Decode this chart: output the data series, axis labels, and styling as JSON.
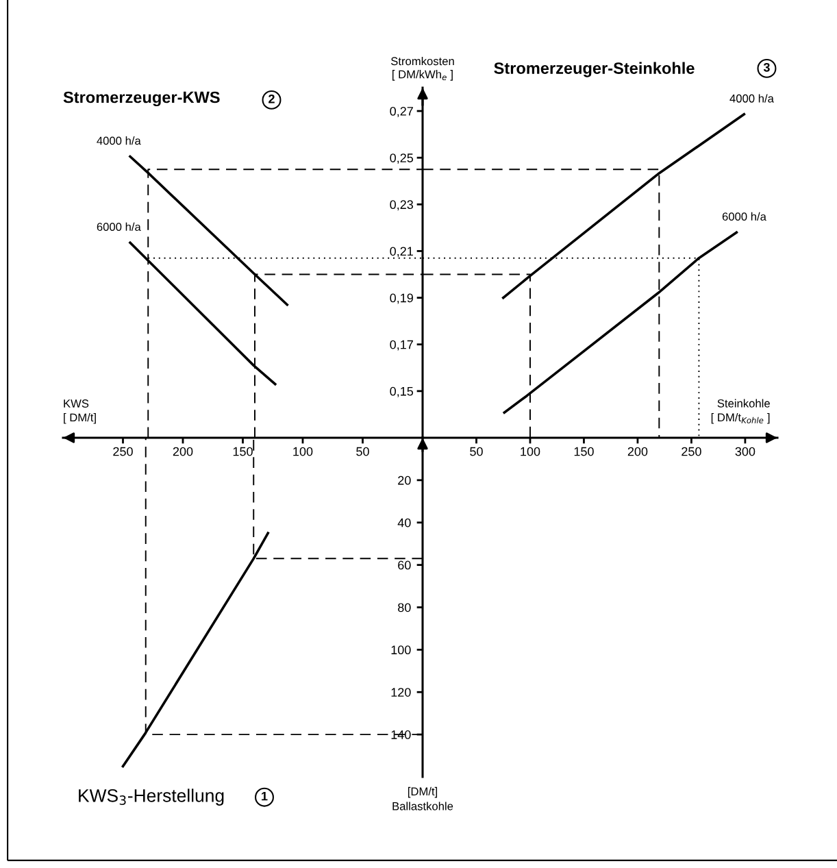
{
  "chart_data": [
    {
      "type": "line",
      "title": "Stromerzeuger-KWS",
      "annotations": [
        "2"
      ],
      "xlabel": "KWS\n[ DM/t]",
      "xlim": [
        300,
        0
      ],
      "xticks": [
        250,
        200,
        150,
        100,
        50
      ],
      "ylim": [
        0.13,
        0.28
      ],
      "tick_labels": "x",
      "grid": false,
      "legend": false,
      "marker": "none",
      "line_style": "solid",
      "series": [
        {
          "name": "4000 h/a",
          "color": "#000000",
          "x": [
            244,
            229,
            140,
            113
          ],
          "values": [
            0.2505,
            0.2435,
            0.2,
            0.187
          ]
        },
        {
          "name": "6000 h/a",
          "color": "#000000",
          "x": [
            244,
            141,
            123
          ],
          "values": [
            0.2136,
            0.161,
            0.153
          ]
        },
        {
          "color": "#000000",
          "line_style": "dashed",
          "x": [
            229,
            229,
            0
          ],
          "values": [
            0.13,
            0.245,
            0.245
          ]
        },
        {
          "color": "#000000",
          "line_style": "dashed",
          "x": [
            140,
            140,
            0
          ],
          "values": [
            0.13,
            0.2,
            0.2
          ]
        },
        {
          "color": "#000000",
          "line_style": "dotted",
          "x": [
            229,
            0
          ],
          "values": [
            0.207,
            0.207
          ]
        }
      ]
    },
    {
      "type": "line",
      "title": "Stromerzeuger-Steinkohle",
      "annotations": [
        "3"
      ],
      "xlabel": "Steinkohle\n[ DM/t$_{Kohle}$ ]",
      "ylabel": "Stromkosten\n[ DM/kWh$_{e}$ ]",
      "xlim": [
        0,
        330
      ],
      "xticks": [
        50,
        100,
        150,
        200,
        250,
        300
      ],
      "ylim": [
        0.13,
        0.28
      ],
      "yticks": [
        {
          "value": 0.15,
          "label": "0,15"
        },
        {
          "value": 0.17,
          "label": "0,17"
        },
        {
          "value": 0.19,
          "label": "0,19"
        },
        {
          "value": 0.21,
          "label": "0,21"
        },
        {
          "value": 0.23,
          "label": "0,23"
        },
        {
          "value": 0.25,
          "label": "0,25"
        },
        {
          "value": 0.27,
          "label": "0,27"
        }
      ],
      "grid": false,
      "legend": false,
      "marker": "none",
      "line_style": "solid",
      "series": [
        {
          "name": "4000 h/a",
          "color": "#000000",
          "x": [
            75,
            99,
            219,
            299
          ],
          "values": [
            0.19,
            0.199,
            0.243,
            0.2686
          ]
        },
        {
          "name": "6000 h/a",
          "color": "#000000",
          "x": [
            76,
            97,
            219,
            257,
            292
          ],
          "values": [
            0.1408,
            0.148,
            0.192,
            0.207,
            0.218
          ]
        },
        {
          "color": "#000000",
          "line_style": "dashed",
          "x": [
            0,
            220,
            220
          ],
          "values": [
            0.245,
            0.245,
            0.13
          ]
        },
        {
          "color": "#000000",
          "line_style": "dashed",
          "x": [
            0,
            100,
            100
          ],
          "values": [
            0.2,
            0.2,
            0.13
          ]
        },
        {
          "color": "#000000",
          "line_style": "dotted",
          "x": [
            0,
            257,
            257
          ],
          "values": [
            0.207,
            0.207,
            0.13
          ]
        }
      ]
    },
    {
      "type": "line",
      "title": "KWS$_{3}$-Herstellung",
      "annotations": [
        "1"
      ],
      "ylabel": "[DM/t]\nBallastkohle",
      "xlim": [
        300,
        0
      ],
      "ylim": [
        160,
        0
      ],
      "yticks": [
        20,
        40,
        60,
        80,
        100,
        120,
        140
      ],
      "tick_labels": "y",
      "grid": false,
      "legend": false,
      "marker": "none",
      "line_style": "solid",
      "series": [
        {
          "color": "#000000",
          "x": [
            129,
            141,
            232,
            250
          ],
          "values": [
            45,
            57,
            140,
            155
          ]
        },
        {
          "color": "#000000",
          "line_style": "dashed",
          "x": [
            0,
            141,
            141
          ],
          "values": [
            57,
            57,
            0
          ]
        },
        {
          "color": "#000000",
          "line_style": "dashed",
          "x": [
            0,
            231,
            231
          ],
          "values": [
            140,
            140,
            0
          ]
        }
      ]
    }
  ]
}
